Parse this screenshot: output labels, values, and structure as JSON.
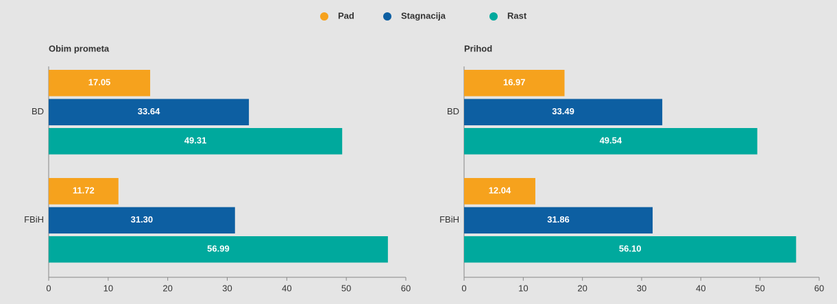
{
  "legend": {
    "items": [
      {
        "name": "Pad",
        "color": "#f6a21d"
      },
      {
        "name": "Stagnacija",
        "color": "#0d5fa2"
      },
      {
        "name": "Rast",
        "color": "#00a99d"
      }
    ]
  },
  "chart_data": [
    {
      "type": "hbar",
      "title": "Obim prometa",
      "categories": [
        "BD",
        "FBiH"
      ],
      "series": [
        {
          "values": [
            17.05,
            11.72
          ],
          "value_labels": [
            "17.05",
            "11.72"
          ]
        },
        {
          "values": [
            33.64,
            31.3
          ],
          "value_labels": [
            "33.64",
            "31.30"
          ]
        },
        {
          "values": [
            49.31,
            56.99
          ],
          "value_labels": [
            "49.31",
            "56.99"
          ]
        }
      ],
      "xlim": [
        0,
        60
      ],
      "xticks": [
        0,
        10,
        20,
        30,
        40,
        50,
        60
      ]
    },
    {
      "type": "hbar",
      "title": "Prihod",
      "categories": [
        "BD",
        "FBiH"
      ],
      "series": [
        {
          "values": [
            16.97,
            12.04
          ],
          "value_labels": [
            "16.97",
            "12.04"
          ]
        },
        {
          "values": [
            33.49,
            31.86
          ],
          "value_labels": [
            "33.49",
            "31.86"
          ]
        },
        {
          "values": [
            49.54,
            56.1
          ],
          "value_labels": [
            "49.54",
            "56.10"
          ]
        }
      ],
      "xlim": [
        0,
        60
      ],
      "xticks": [
        0,
        10,
        20,
        30,
        40,
        50,
        60
      ]
    }
  ]
}
